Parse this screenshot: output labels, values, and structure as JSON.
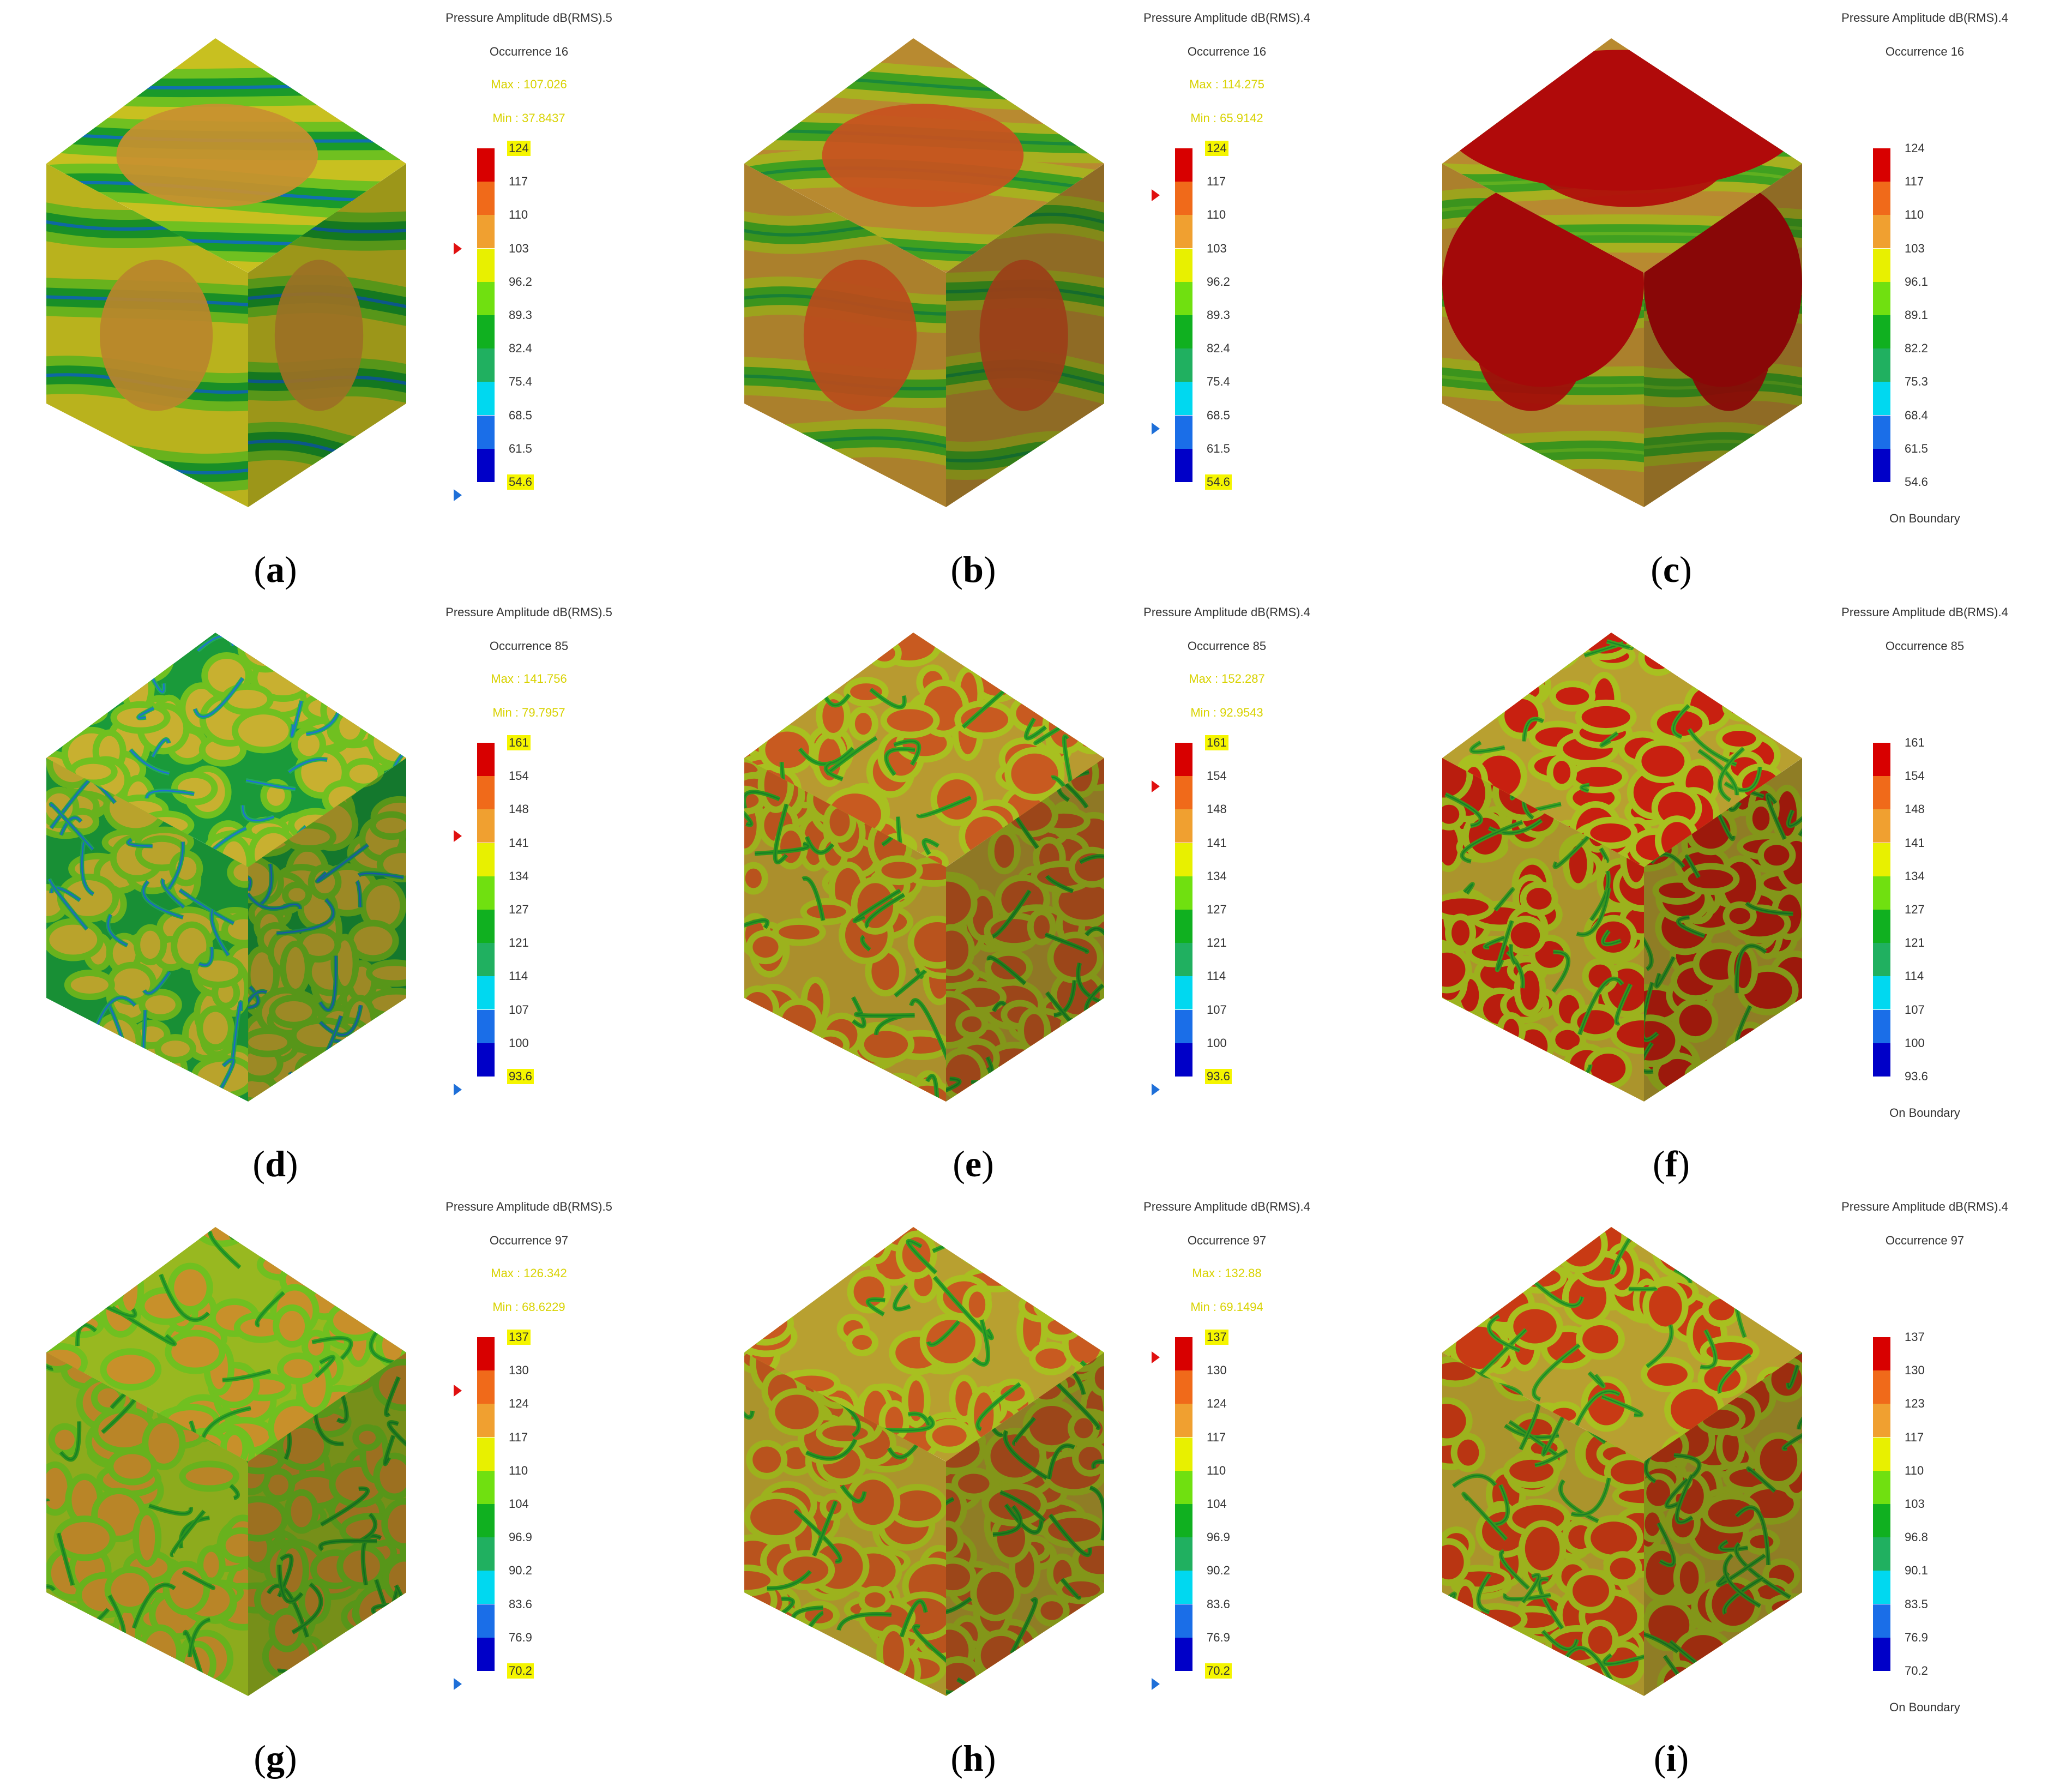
{
  "colormap": [
    "#0000c8",
    "#1a6ee8",
    "#00d8f0",
    "#20b060",
    "#10b020",
    "#70e010",
    "#e8f000",
    "#f0a030",
    "#f06a1a",
    "#d80000"
  ],
  "panels": [
    {
      "caption": "a",
      "title": "Pressure Amplitude dB(RMS).5",
      "occurrence": "Occurrence 16",
      "max": "Max : 107.026",
      "min": "Min : 37.8437",
      "ticks": [
        "124",
        "117",
        "110",
        "103",
        "96.2",
        "89.3",
        "82.4",
        "75.4",
        "68.5",
        "61.5",
        "54.6"
      ],
      "highlight_top": true,
      "highlight_bottom": true,
      "red_marker": 3,
      "blue_marker": 10.4,
      "on_boundary": "",
      "pattern": "smooth-low",
      "cube_colors": {
        "base": "#c8c020",
        "low": "#70c020",
        "mid": "#1a9a2a",
        "deep": "#1070b0",
        "hot": "#c89030"
      }
    },
    {
      "caption": "b",
      "title": "Pressure Amplitude dB(RMS).4",
      "occurrence": "Occurrence 16",
      "max": "Max : 114.275",
      "min": "Min : 65.9142",
      "ticks": [
        "124",
        "117",
        "110",
        "103",
        "96.2",
        "89.3",
        "82.4",
        "75.4",
        "68.5",
        "61.5",
        "54.6"
      ],
      "highlight_top": true,
      "highlight_bottom": true,
      "red_marker": 1.4,
      "blue_marker": 8.4,
      "on_boundary": "",
      "pattern": "smooth-mid",
      "cube_colors": {
        "base": "#b88a30",
        "low": "#a8b020",
        "mid": "#40a020",
        "deep": "#1a8a3a",
        "hot": "#c85020"
      }
    },
    {
      "caption": "c",
      "title": "Pressure Amplitude dB(RMS).4",
      "occurrence": "Occurrence 16",
      "max": "",
      "min": "",
      "ticks": [
        "124",
        "117",
        "110",
        "103",
        "96.1",
        "89.1",
        "82.2",
        "75.3",
        "68.4",
        "61.5",
        "54.6"
      ],
      "highlight_top": false,
      "highlight_bottom": false,
      "red_marker": -1,
      "blue_marker": -1,
      "on_boundary": "On Boundary",
      "pattern": "smooth-high",
      "cube_colors": {
        "base": "#b88a30",
        "low": "#a8b020",
        "mid": "#40a020",
        "deep": "#60b020",
        "hot": "#b00a0a"
      }
    },
    {
      "caption": "d",
      "title": "Pressure Amplitude dB(RMS).5",
      "occurrence": "Occurrence 85",
      "max": "Max : 141.756",
      "min": "Min : 79.7957",
      "ticks": [
        "161",
        "154",
        "148",
        "141",
        "134",
        "127",
        "121",
        "114",
        "107",
        "100",
        "93.6"
      ],
      "highlight_top": true,
      "highlight_bottom": true,
      "red_marker": 2.8,
      "blue_marker": 10.4,
      "on_boundary": "",
      "pattern": "blobs-cool",
      "cube_colors": {
        "base": "#1a9a3a",
        "low": "#70c020",
        "mid": "#20a860",
        "deep": "#1e6fd8",
        "hot": "#c8b030"
      }
    },
    {
      "caption": "e",
      "title": "Pressure Amplitude dB(RMS).4",
      "occurrence": "Occurrence 85",
      "max": "Max : 152.287",
      "min": "Min : 92.9543",
      "ticks": [
        "161",
        "154",
        "148",
        "141",
        "134",
        "127",
        "121",
        "114",
        "107",
        "100",
        "93.6"
      ],
      "highlight_top": true,
      "highlight_bottom": true,
      "red_marker": 1.3,
      "blue_marker": 10.4,
      "on_boundary": "",
      "pattern": "blobs-warm",
      "cube_colors": {
        "base": "#b89a30",
        "low": "#a8c020",
        "mid": "#30a020",
        "deep": "#1a8a2a",
        "hot": "#c85a20"
      }
    },
    {
      "caption": "f",
      "title": "Pressure Amplitude dB(RMS).4",
      "occurrence": "Occurrence 85",
      "max": "",
      "min": "",
      "ticks": [
        "161",
        "154",
        "148",
        "141",
        "134",
        "127",
        "121",
        "114",
        "107",
        "100",
        "93.6"
      ],
      "highlight_top": false,
      "highlight_bottom": false,
      "red_marker": -1,
      "blue_marker": -1,
      "on_boundary": "On Boundary",
      "pattern": "blobs-hot",
      "cube_colors": {
        "base": "#b8a030",
        "low": "#a8c020",
        "mid": "#40a020",
        "deep": "#1a8a2a",
        "hot": "#c82010"
      }
    },
    {
      "caption": "g",
      "title": "Pressure Amplitude dB(RMS).5",
      "occurrence": "Occurrence 97",
      "max": "Max : 126.342",
      "min": "Min : 68.6229",
      "ticks": [
        "137",
        "130",
        "124",
        "117",
        "110",
        "104",
        "96.9",
        "90.2",
        "83.6",
        "76.9",
        "70.2"
      ],
      "highlight_top": true,
      "highlight_bottom": true,
      "red_marker": 1.6,
      "blue_marker": 10.4,
      "on_boundary": "",
      "pattern": "blobs-green",
      "cube_colors": {
        "base": "#98b820",
        "low": "#70c020",
        "mid": "#30a020",
        "deep": "#1a8a2a",
        "hot": "#c8902a"
      }
    },
    {
      "caption": "h",
      "title": "Pressure Amplitude dB(RMS).4",
      "occurrence": "Occurrence 97",
      "max": "Max : 132.88",
      "min": "Min : 69.1494",
      "ticks": [
        "137",
        "130",
        "124",
        "117",
        "110",
        "104",
        "96.9",
        "90.2",
        "83.6",
        "76.9",
        "70.2"
      ],
      "highlight_top": true,
      "highlight_bottom": true,
      "red_marker": 0.6,
      "blue_marker": 10.4,
      "on_boundary": "",
      "pattern": "blobs-warm",
      "cube_colors": {
        "base": "#b8a030",
        "low": "#a8c020",
        "mid": "#30a020",
        "deep": "#1a8a2a",
        "hot": "#c85a20"
      }
    },
    {
      "caption": "i",
      "title": "Pressure Amplitude dB(RMS).4",
      "occurrence": "Occurrence 97",
      "max": "",
      "min": "",
      "ticks": [
        "137",
        "130",
        "123",
        "117",
        "110",
        "103",
        "96.8",
        "90.1",
        "83.5",
        "76.9",
        "70.2"
      ],
      "highlight_top": false,
      "highlight_bottom": false,
      "red_marker": -1,
      "blue_marker": -1,
      "on_boundary": "On Boundary",
      "pattern": "blobs-hot",
      "cube_colors": {
        "base": "#b8a030",
        "low": "#a8c020",
        "mid": "#40a020",
        "deep": "#1a8a2a",
        "hot": "#c83a14"
      }
    }
  ]
}
